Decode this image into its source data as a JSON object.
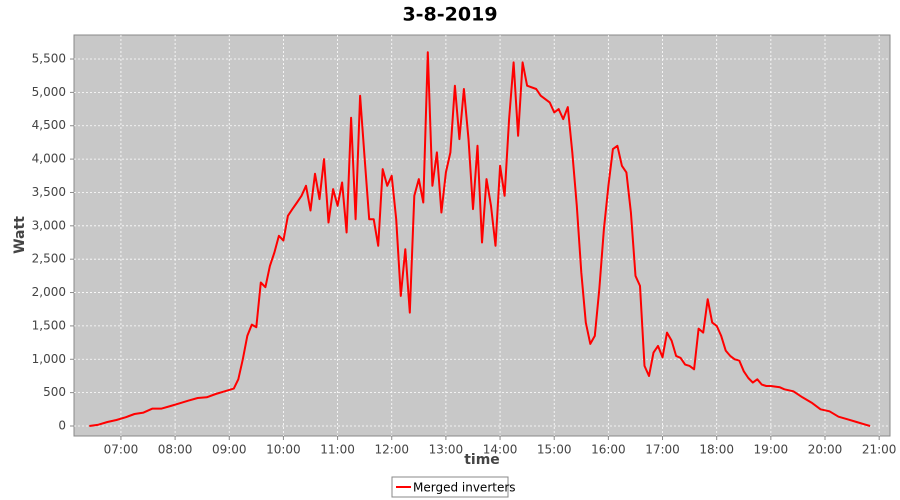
{
  "chart_data": {
    "type": "line",
    "title": "3-8-2019",
    "x_label": "time",
    "y_label": "Watt",
    "x": [
      "06:25",
      "06:35",
      "06:45",
      "06:55",
      "07:05",
      "07:15",
      "07:25",
      "07:35",
      "07:45",
      "07:55",
      "08:05",
      "08:15",
      "08:25",
      "08:35",
      "08:45",
      "08:55",
      "09:05",
      "09:10",
      "09:15",
      "09:20",
      "09:25",
      "09:30",
      "09:35",
      "09:40",
      "09:45",
      "09:50",
      "09:55",
      "10:00",
      "10:05",
      "10:10",
      "10:15",
      "10:20",
      "10:25",
      "10:30",
      "10:35",
      "10:40",
      "10:45",
      "10:50",
      "10:55",
      "11:00",
      "11:05",
      "11:10",
      "11:15",
      "11:20",
      "11:25",
      "11:30",
      "11:35",
      "11:40",
      "11:45",
      "11:50",
      "11:55",
      "12:00",
      "12:05",
      "12:10",
      "12:15",
      "12:20",
      "12:25",
      "12:30",
      "12:35",
      "12:40",
      "12:45",
      "12:50",
      "12:55",
      "13:00",
      "13:05",
      "13:10",
      "13:15",
      "13:20",
      "13:25",
      "13:30",
      "13:35",
      "13:40",
      "13:45",
      "13:50",
      "13:55",
      "14:00",
      "14:05",
      "14:10",
      "14:15",
      "14:20",
      "14:25",
      "14:30",
      "14:40",
      "14:45",
      "14:55",
      "15:00",
      "15:05",
      "15:10",
      "15:15",
      "15:20",
      "15:25",
      "15:30",
      "15:35",
      "15:40",
      "15:45",
      "15:50",
      "15:55",
      "16:00",
      "16:05",
      "16:10",
      "16:15",
      "16:20",
      "16:25",
      "16:30",
      "16:35",
      "16:40",
      "16:45",
      "16:50",
      "16:55",
      "17:00",
      "17:05",
      "17:10",
      "17:15",
      "17:20",
      "17:25",
      "17:30",
      "17:35",
      "17:40",
      "17:45",
      "17:50",
      "17:55",
      "18:00",
      "18:05",
      "18:10",
      "18:15",
      "18:20",
      "18:25",
      "18:30",
      "18:35",
      "18:40",
      "18:45",
      "18:50",
      "18:55",
      "19:00",
      "19:10",
      "19:15",
      "19:25",
      "19:35",
      "19:45",
      "19:55",
      "20:05",
      "20:15",
      "20:25",
      "20:35",
      "20:45",
      "20:50"
    ],
    "series": [
      {
        "name": "Merged inverters",
        "color": "#ff0000",
        "values": [
          0,
          20,
          60,
          90,
          130,
          180,
          200,
          260,
          260,
          300,
          340,
          380,
          420,
          430,
          480,
          520,
          560,
          700,
          1000,
          1350,
          1520,
          1480,
          2150,
          2080,
          2400,
          2600,
          2850,
          2780,
          3150,
          3250,
          3350,
          3450,
          3600,
          3230,
          3780,
          3400,
          4000,
          3050,
          3550,
          3300,
          3650,
          2900,
          4620,
          3100,
          4950,
          4000,
          3100,
          3100,
          2700,
          3850,
          3600,
          3750,
          3100,
          1950,
          2650,
          1700,
          3450,
          3700,
          3350,
          5600,
          3600,
          4100,
          3200,
          3800,
          4100,
          5100,
          4300,
          5050,
          4300,
          3250,
          4200,
          2750,
          3700,
          3300,
          2700,
          3900,
          3450,
          4600,
          5450,
          4350,
          5450,
          5100,
          5050,
          4950,
          4850,
          4700,
          4750,
          4600,
          4780,
          4100,
          3300,
          2300,
          1550,
          1230,
          1350,
          2050,
          2950,
          3600,
          4150,
          4200,
          3900,
          3800,
          3200,
          2250,
          2100,
          900,
          750,
          1100,
          1200,
          1030,
          1400,
          1280,
          1050,
          1020,
          920,
          900,
          850,
          1460,
          1400,
          1900,
          1550,
          1500,
          1350,
          1130,
          1050,
          1000,
          980,
          820,
          720,
          650,
          700,
          620,
          600,
          600,
          580,
          550,
          520,
          430,
          350,
          250,
          220,
          140,
          100,
          60,
          20,
          0
        ]
      }
    ],
    "xlim": [
      "06:08",
      "21:12"
    ],
    "xticks": [
      "07:00",
      "08:00",
      "09:00",
      "10:00",
      "11:00",
      "12:00",
      "13:00",
      "14:00",
      "15:00",
      "16:00",
      "17:00",
      "18:00",
      "19:00",
      "20:00",
      "21:00"
    ],
    "ylim": [
      -150,
      5860
    ],
    "yticks": [
      0,
      500,
      {
        "value": 1000,
        "label": "1,000"
      },
      {
        "value": 1500,
        "label": "1,500"
      },
      {
        "value": 2000,
        "label": "2,000"
      },
      {
        "value": 2500,
        "label": "2,500"
      },
      {
        "value": 3000,
        "label": "3,000"
      },
      {
        "value": 3500,
        "label": "3,500"
      },
      {
        "value": 4000,
        "label": "4,000"
      },
      {
        "value": 4500,
        "label": "4,500"
      },
      {
        "value": 5000,
        "label": "5,000"
      },
      {
        "value": 5500,
        "label": "5,500"
      }
    ],
    "grid": true,
    "legend": "bottom"
  }
}
